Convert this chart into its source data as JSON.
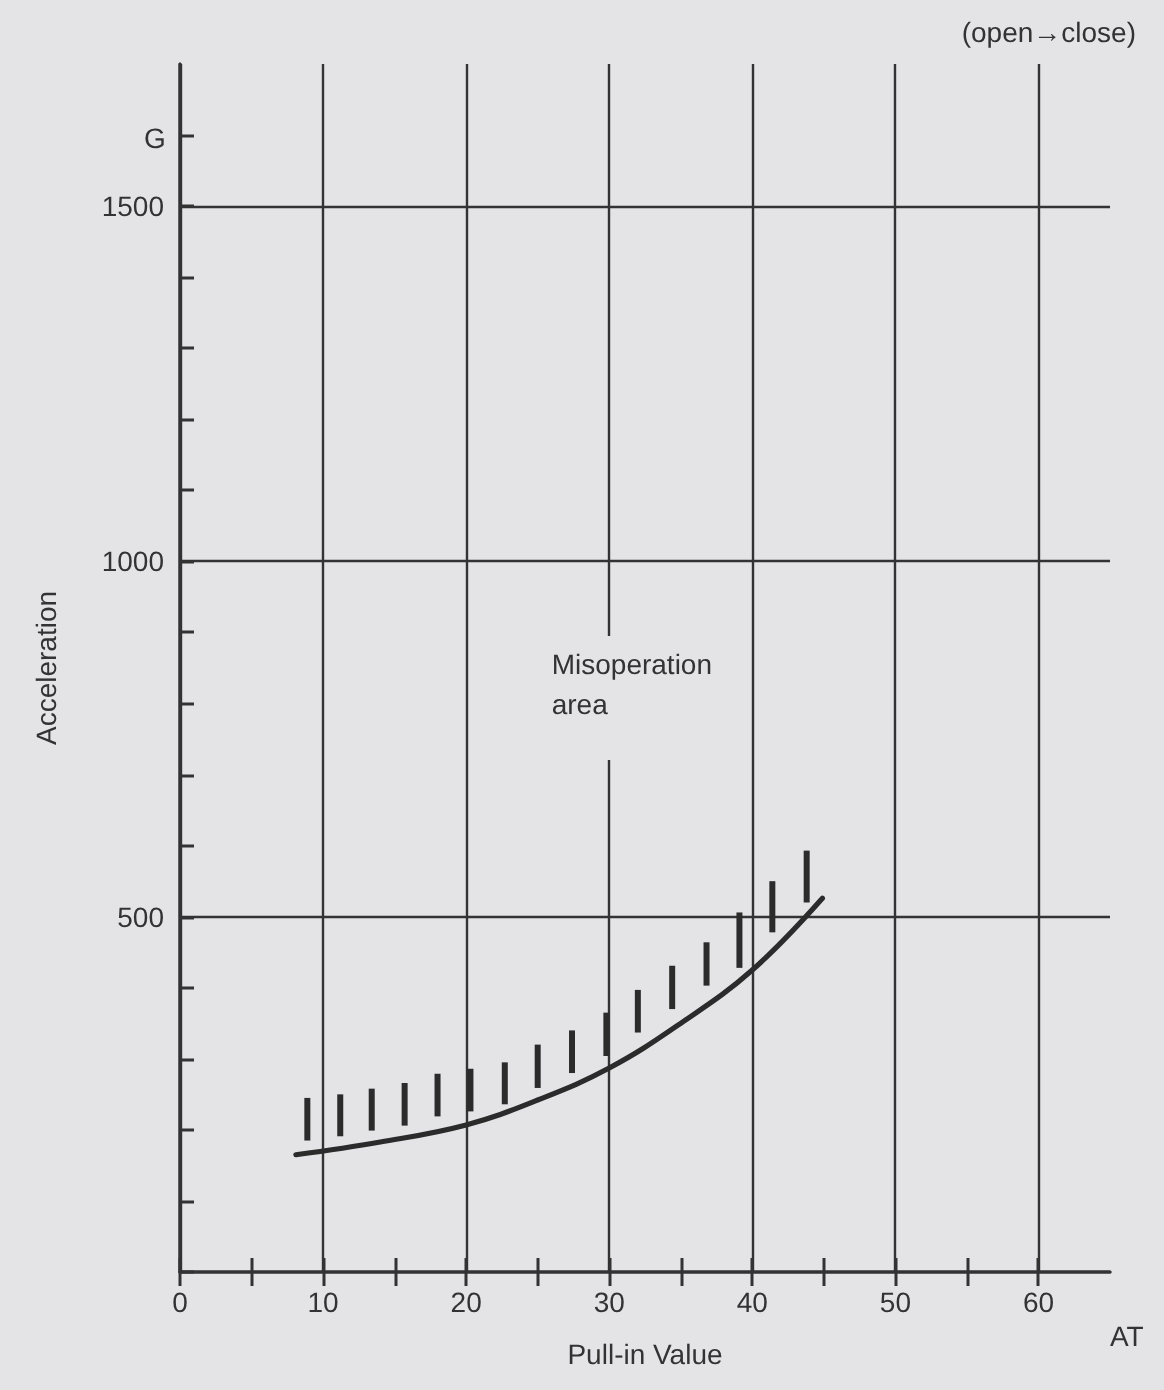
{
  "chart_data": {
    "type": "bar",
    "xlabel": "Pull-in Value",
    "ylabel": "Acceleration",
    "annotations": [
      "(open→close)",
      "Misoperation area",
      "AT",
      "G"
    ],
    "xlim": [
      0,
      65
    ],
    "ylim": [
      0,
      1700
    ],
    "xticks": [
      0,
      {
        "value": 5,
        "label": null
      },
      10,
      {
        "value": 15,
        "label": null
      },
      20,
      {
        "value": 25,
        "label": null
      },
      30,
      {
        "value": 35,
        "label": null
      },
      40,
      {
        "value": 45,
        "label": null
      },
      50,
      {
        "value": 55,
        "label": null
      },
      60
    ],
    "yticks": [
      {
        "value": 0,
        "label": null
      },
      {
        "value": 100,
        "label": null
      },
      {
        "value": 200,
        "label": null
      },
      {
        "value": 300,
        "label": null
      },
      {
        "value": 400,
        "label": null
      },
      500,
      {
        "value": 600,
        "label": null
      },
      {
        "value": 700,
        "label": null
      },
      {
        "value": 800,
        "label": null
      },
      {
        "value": 900,
        "label": null
      },
      1000,
      {
        "value": 1100,
        "label": null
      },
      {
        "value": 1200,
        "label": null
      },
      {
        "value": 1300,
        "label": null
      },
      {
        "value": 1400,
        "label": null
      },
      1500,
      {
        "value": 1600,
        "label": null
      }
    ],
    "grid": true,
    "series": [
      {
        "color": "#2b2b2b",
        "x": [
          8.9,
          11.2,
          13.4,
          15.7,
          18.0,
          20.3,
          22.7,
          25.0,
          27.4,
          29.8,
          32.0,
          34.4,
          36.8,
          39.1,
          41.4,
          43.8
        ],
        "base": [
          185,
          191,
          199,
          206,
          219,
          226,
          236,
          259,
          280,
          304,
          337,
          370,
          403,
          428,
          478,
          520
        ],
        "values": [
          60,
          59,
          59,
          60,
          60,
          60,
          59,
          61,
          60,
          61,
          60,
          61,
          61,
          78,
          72,
          73
        ]
      },
      {
        "type": "line",
        "color": "#2b2b2b",
        "marker": "none",
        "line_style": "solid",
        "x": [
          8.1,
          14,
          20,
          25,
          30,
          35,
          40,
          44.9
        ],
        "values": [
          165,
          183,
          207,
          242,
          287,
          350,
          425,
          526
        ]
      }
    ]
  }
}
